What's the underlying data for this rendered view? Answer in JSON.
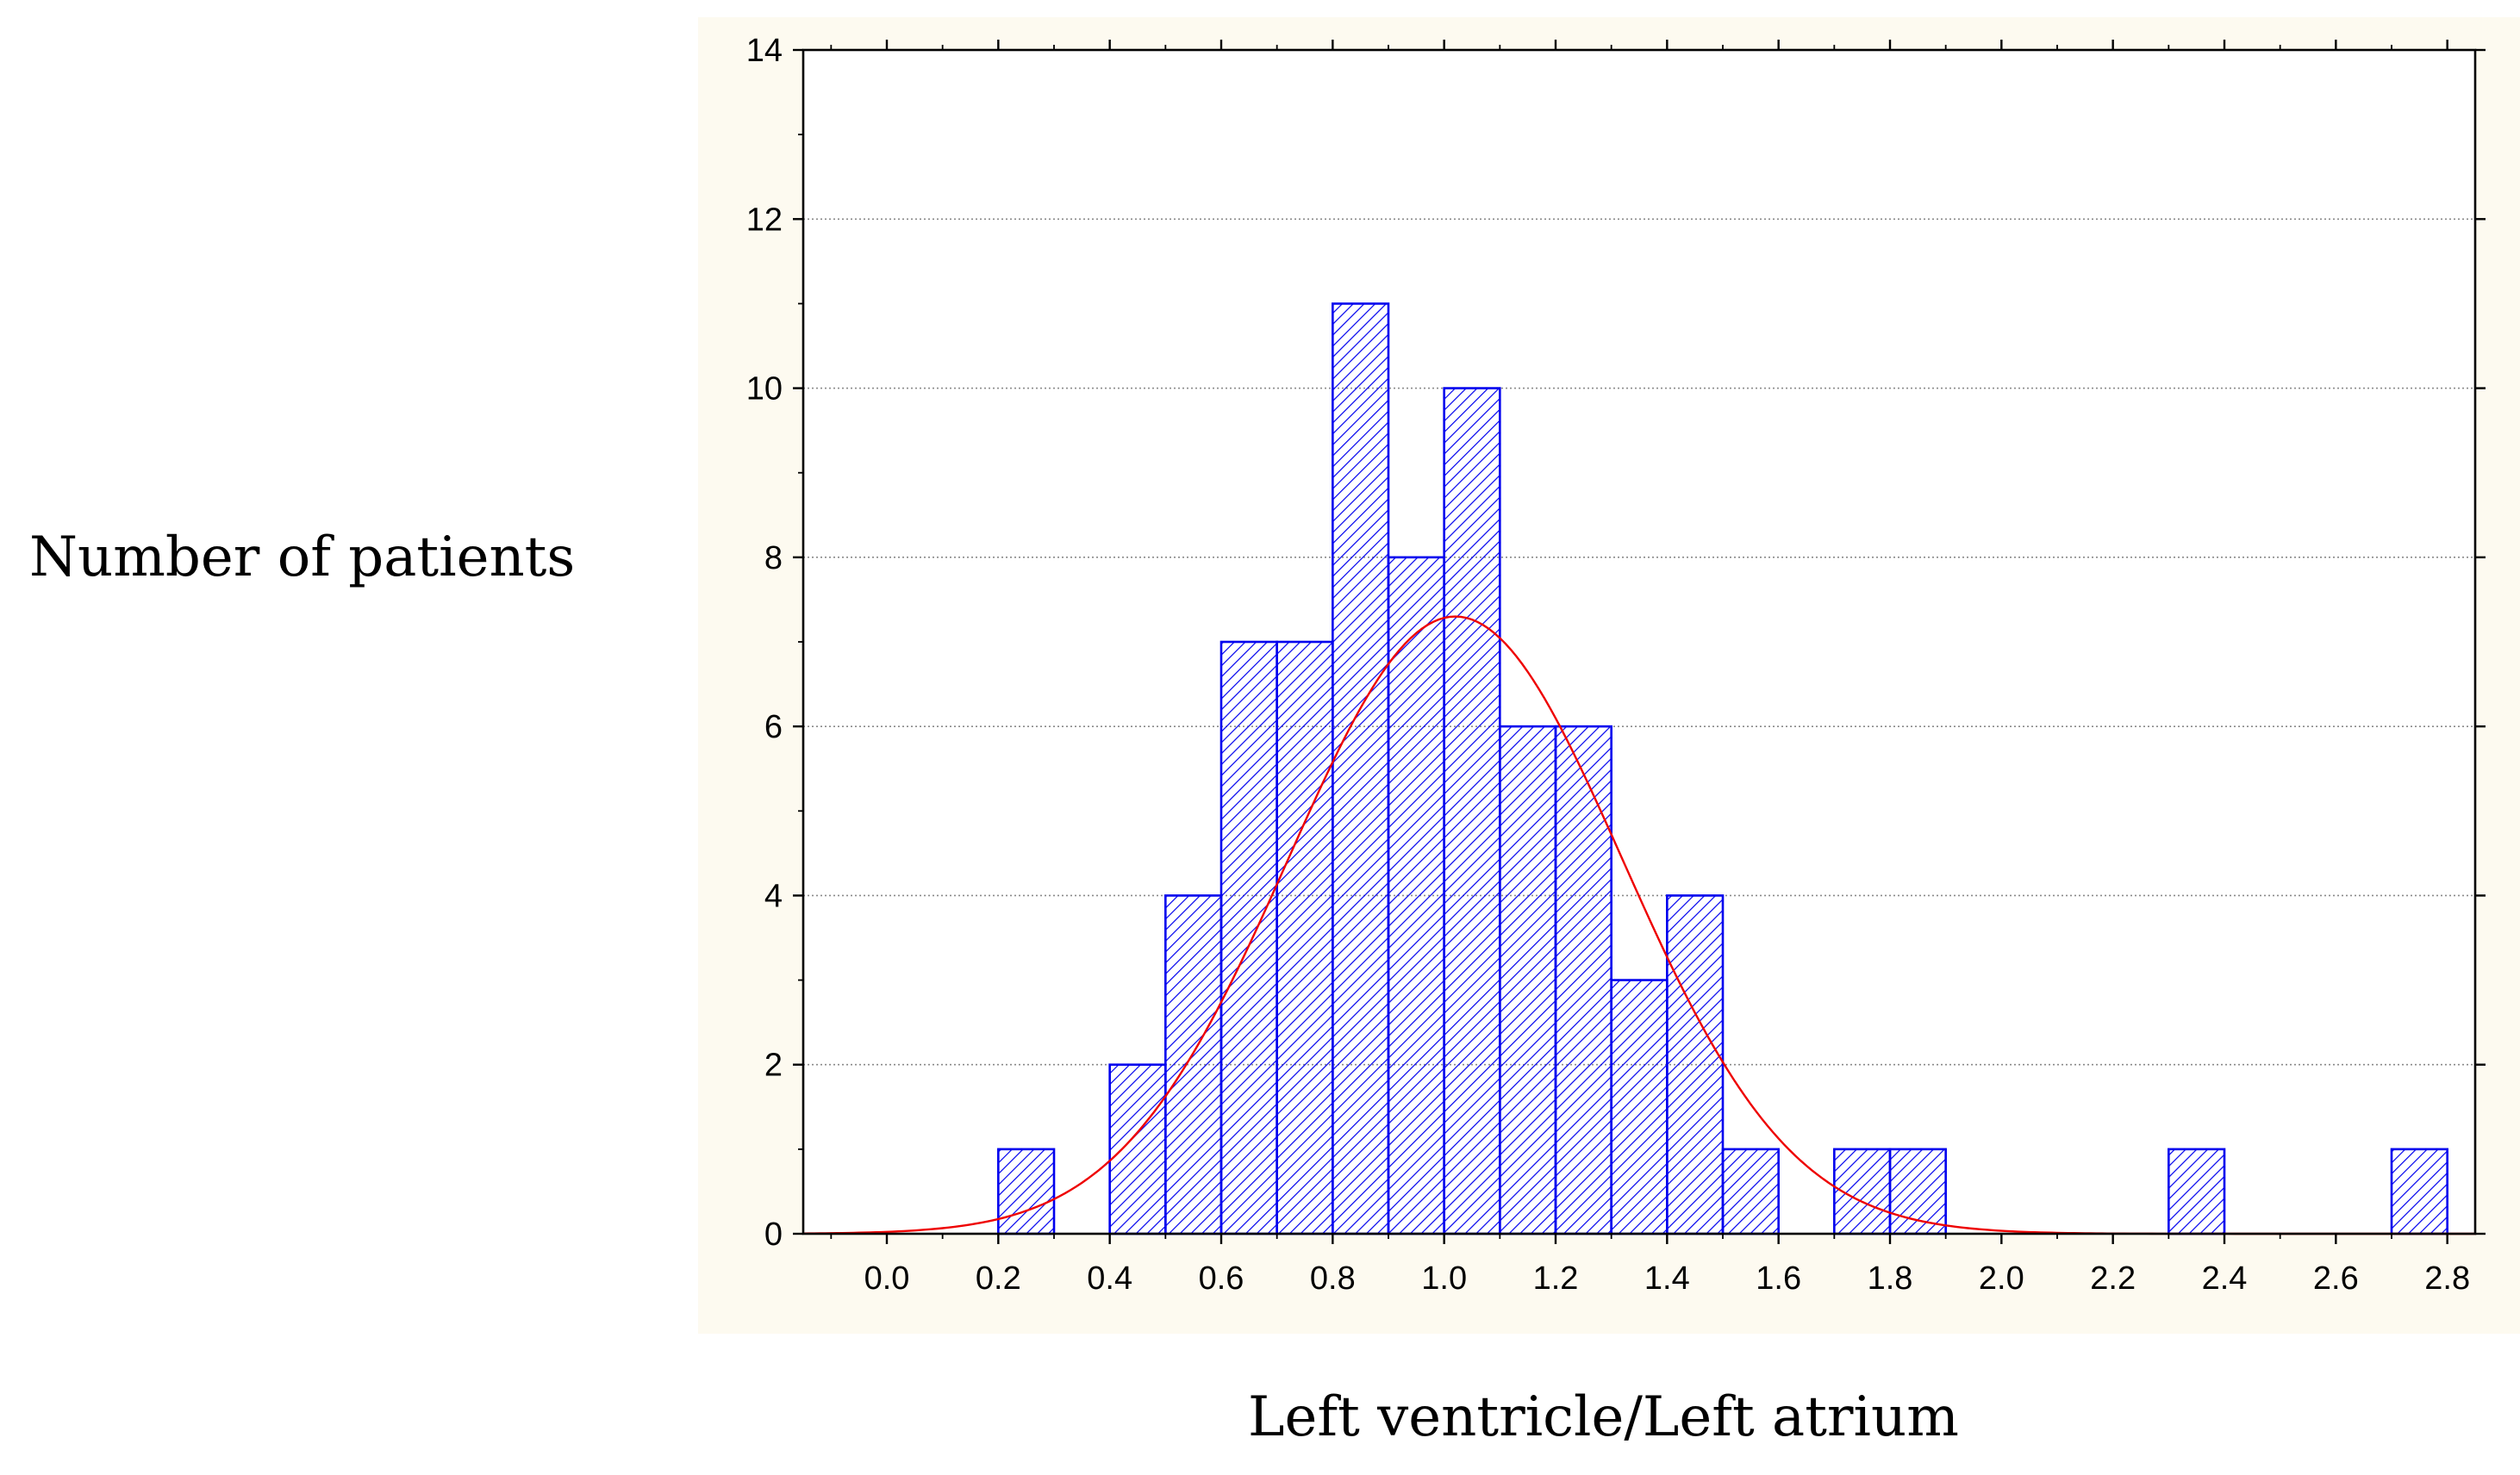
{
  "chart_data": {
    "type": "bar",
    "title": "",
    "xlabel": "Left ventricle/Left atrium",
    "ylabel": "Number of patients",
    "xlim": [
      -0.15,
      2.85
    ],
    "ylim": [
      0,
      14
    ],
    "grid": "horizontal dotted",
    "bin_width": 0.1,
    "bins": [
      {
        "start": 0.2,
        "end": 0.3,
        "count": 1
      },
      {
        "start": 0.4,
        "end": 0.5,
        "count": 2
      },
      {
        "start": 0.5,
        "end": 0.6,
        "count": 4
      },
      {
        "start": 0.6,
        "end": 0.7,
        "count": 7
      },
      {
        "start": 0.7,
        "end": 0.8,
        "count": 7
      },
      {
        "start": 0.8,
        "end": 0.9,
        "count": 11
      },
      {
        "start": 0.9,
        "end": 1.0,
        "count": 8
      },
      {
        "start": 1.0,
        "end": 1.1,
        "count": 10
      },
      {
        "start": 1.1,
        "end": 1.2,
        "count": 6
      },
      {
        "start": 1.2,
        "end": 1.3,
        "count": 6
      },
      {
        "start": 1.3,
        "end": 1.4,
        "count": 3
      },
      {
        "start": 1.4,
        "end": 1.5,
        "count": 4
      },
      {
        "start": 1.5,
        "end": 1.6,
        "count": 1
      },
      {
        "start": 1.7,
        "end": 1.8,
        "count": 1
      },
      {
        "start": 1.8,
        "end": 1.9,
        "count": 1
      },
      {
        "start": 2.3,
        "end": 2.4,
        "count": 1
      },
      {
        "start": 2.7,
        "end": 2.8,
        "count": 1
      }
    ],
    "x_ticks": [
      "0.0",
      "0.2",
      "0.4",
      "0.6",
      "0.8",
      "1.0",
      "1.2",
      "1.4",
      "1.6",
      "1.8",
      "2.0",
      "2.2",
      "2.4",
      "2.6",
      "2.8"
    ],
    "y_ticks": [
      "0",
      "2",
      "4",
      "6",
      "8",
      "10",
      "12",
      "14"
    ],
    "fit_curve": {
      "type": "normal",
      "mean": 1.02,
      "sd": 0.3,
      "peak": 7.3
    },
    "colors": {
      "bar_stroke": "#0000ee",
      "bar_hatch": "#0000ee",
      "curve": "#ee0000",
      "plot_frame_bg": "#fdfaf0",
      "plot_bg": "#ffffff",
      "grid": "#8a8a8a"
    }
  }
}
